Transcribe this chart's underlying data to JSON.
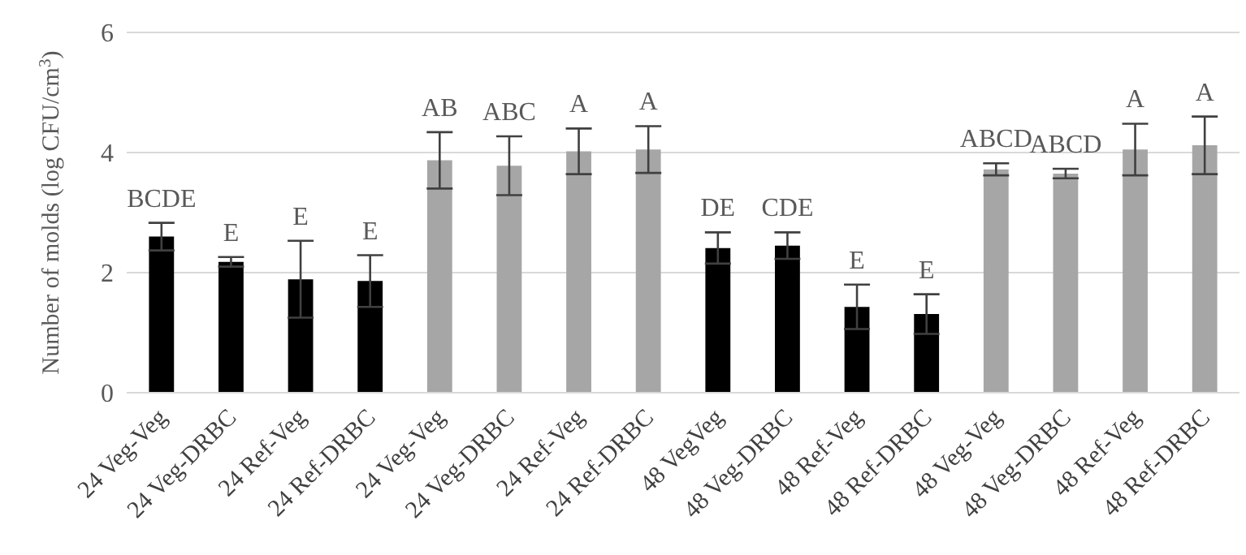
{
  "chart_data": {
    "type": "bar",
    "ylabel": "Number of molds (log CFU/cm$^{3}$)",
    "categories": [
      "24 Veg-Veg",
      "24 Veg-DRBC",
      "24 Ref-Veg",
      "24 Ref-DRBC",
      "24 Veg-Veg",
      "24 Veg-DRBC",
      "24 Ref-Veg",
      "24 Ref-DRBC",
      "48 VegVeg",
      "48 Veg-DRBC",
      "48 Ref-Veg",
      "48 Ref-DRBC",
      "48 Veg-Veg",
      "48 Veg-DRBC",
      "48 Ref-Veg",
      "48 Ref-DRBC"
    ],
    "values": [
      2.6,
      2.18,
      1.89,
      1.86,
      3.87,
      3.78,
      4.02,
      4.05,
      2.41,
      2.45,
      1.43,
      1.31,
      3.72,
      3.65,
      4.05,
      4.12
    ],
    "errors": [
      0.23,
      0.08,
      0.64,
      0.43,
      0.47,
      0.49,
      0.38,
      0.39,
      0.26,
      0.22,
      0.37,
      0.33,
      0.1,
      0.08,
      0.43,
      0.48
    ],
    "value_labels": [
      "BCDE",
      "E",
      "E",
      "E",
      "AB",
      "ABC",
      "A",
      "A",
      "DE",
      "CDE",
      "E",
      "E",
      "ABCD",
      "ABCD",
      "A",
      "A"
    ],
    "colors": [
      "#000000",
      "#000000",
      "#000000",
      "#000000",
      "#a6a6a6",
      "#a6a6a6",
      "#a6a6a6",
      "#a6a6a6",
      "#000000",
      "#000000",
      "#000000",
      "#000000",
      "#a6a6a6",
      "#a6a6a6",
      "#a6a6a6",
      "#a6a6a6"
    ],
    "ylim": [
      0,
      6
    ],
    "yticks": [
      0,
      2,
      4,
      6
    ],
    "grid": "y",
    "legend": false
  }
}
